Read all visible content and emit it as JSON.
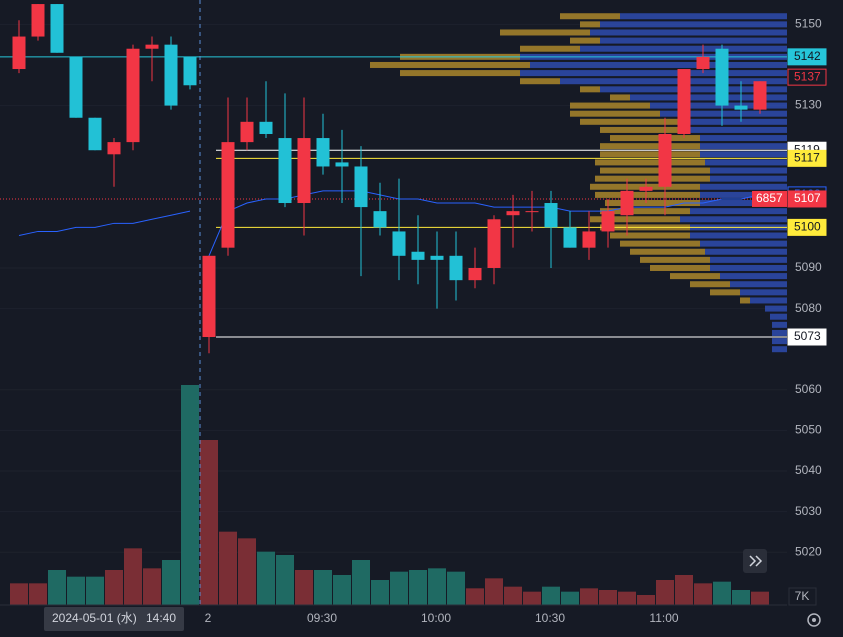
{
  "chart_data": {
    "type": "candlestick",
    "colors": {
      "up": "#f23645",
      "down": "#22c1d6",
      "up_volume": "#7a2e35",
      "down_volume": "#1f6a63",
      "vwap": "#2962ff"
    },
    "categories": [
      null,
      null,
      null,
      null,
      null,
      null,
      null,
      null,
      null,
      null,
      "2",
      null,
      null,
      null,
      null,
      null,
      "09:30",
      null,
      null,
      null,
      null,
      null,
      "10:00",
      null,
      null,
      null,
      null,
      null,
      "10:30",
      null,
      null,
      null,
      null,
      null,
      "11:00",
      null,
      null,
      null,
      null,
      null
    ],
    "open": [
      5139,
      5147,
      5155,
      5142,
      5127,
      5118,
      5121,
      5144,
      5145,
      5142,
      5073,
      5095,
      5121,
      5126,
      5122,
      5106,
      5122,
      5116,
      5115,
      5104,
      5099,
      5094,
      5093,
      5093,
      5087,
      5090,
      5103,
      5104,
      5106,
      5100,
      5095,
      5099,
      5103,
      5109,
      5110,
      5123,
      5139,
      5144,
      5130,
      5129
    ],
    "high": [
      5151,
      5155,
      5155,
      5142,
      5127,
      5122,
      5145,
      5147,
      5147,
      5142,
      5093,
      5132,
      5132,
      5136,
      5133,
      5132,
      5128,
      5124,
      5120,
      5111,
      5112,
      5103,
      5099,
      5099,
      5095,
      5103,
      5108,
      5109,
      5109,
      5104,
      5104,
      5107,
      5112,
      5112,
      5127,
      5139,
      5145,
      5145,
      5136,
      5136
    ],
    "low": [
      5138,
      5146,
      5143,
      5127,
      5119,
      5110,
      5119,
      5136,
      5129,
      5134,
      5069,
      5093,
      5119,
      5122,
      5105,
      5098,
      5113,
      5106,
      5088,
      5098,
      5087,
      5086,
      5080,
      5082,
      5085,
      5086,
      5095,
      5099,
      5090,
      5095,
      5092,
      5095,
      5098,
      5106,
      5103,
      5122,
      5138,
      5125,
      5126,
      5128
    ],
    "close": [
      5147,
      5155,
      5143,
      5127,
      5119,
      5121,
      5144,
      5145,
      5130,
      5135,
      5093,
      5121,
      5126,
      5123,
      5106,
      5122,
      5115,
      5115,
      5105,
      5100,
      5093,
      5092,
      5092,
      5087,
      5090,
      5102,
      5104,
      5104,
      5100,
      5095,
      5099,
      5104,
      5109,
      5110,
      5123,
      5139,
      5142,
      5130,
      5129,
      5136
    ],
    "volume": [
      13,
      13,
      21,
      17,
      17,
      21,
      34,
      22,
      27,
      132,
      99,
      44,
      40,
      32,
      30,
      21,
      21,
      18,
      27,
      15,
      20,
      21,
      22,
      20,
      10,
      16,
      11,
      8,
      11,
      8,
      10,
      9,
      8,
      6,
      15,
      18,
      13,
      14,
      9,
      8
    ],
    "vwap": [
      5098,
      5099,
      5099,
      5100,
      5100,
      5101,
      5101,
      5102,
      5103,
      5104,
      5093,
      5104,
      5106,
      5107,
      5107,
      5108,
      5109,
      5109,
      5109,
      5108,
      5107,
      5107,
      5106,
      5106,
      5106,
      5105,
      5105,
      5105,
      5105,
      5104,
      5104,
      5104,
      5105,
      5105,
      5105,
      5106,
      5106,
      5107,
      5107,
      5108
    ],
    "ylim": [
      5007,
      5156
    ],
    "volume_ylim": [
      0,
      363
    ],
    "yticks": [
      5020,
      5030,
      5040,
      5050,
      5060,
      5080,
      5090,
      5130,
      5150
    ],
    "grid": true,
    "levels": [
      {
        "value": 5142,
        "bg": "#26c6da",
        "fg": "#131722",
        "border": "#26c6da",
        "line": "full"
      },
      {
        "value": 5137,
        "bg": "#161a25",
        "fg": "#f23645",
        "border": "#f23645",
        "line": "none"
      },
      {
        "value": 5119,
        "bg": "#ffffff",
        "fg": "#131722",
        "border": "#ffffff",
        "line": "session"
      },
      {
        "value": 5117,
        "bg": "#ffeb3b",
        "fg": "#131722",
        "border": "#ffeb3b",
        "line": "session"
      },
      {
        "value": 5108,
        "bg": "#161a25",
        "fg": "#2962ff",
        "border": "#2962ff",
        "line": "none"
      },
      {
        "value": 5107,
        "bg": "#f23645",
        "fg": "#ffffff",
        "border": "#f23645",
        "line": "dotted",
        "tag": "6857"
      },
      {
        "value": 5100,
        "bg": "#ffeb3b",
        "fg": "#131722",
        "border": "#ffeb3b",
        "line": "session"
      },
      {
        "value": 5073,
        "bg": "#ffffff",
        "fg": "#131722",
        "border": "#ffffff",
        "line": "session"
      }
    ],
    "volume_profile": {
      "prices": [
        5152,
        5150,
        5148,
        5146,
        5144,
        5142,
        5140,
        5138,
        5136,
        5134,
        5132,
        5130,
        5128,
        5126,
        5124,
        5122,
        5120,
        5118,
        5116,
        5114,
        5112,
        5110,
        5108,
        5106,
        5104,
        5102,
        5100,
        5098,
        5096,
        5094,
        5092,
        5090,
        5088,
        5086,
        5084,
        5082,
        5080,
        5078,
        5076,
        5074,
        5072,
        5070
      ],
      "segments": [
        {
          "color": "#2f4fb8",
          "values": [
            167,
            187,
            197,
            187,
            207,
            267,
            257,
            267,
            227,
            187,
            157,
            137,
            127,
            107,
            97,
            87,
            87,
            87,
            82,
            77,
            77,
            87,
            87,
            87,
            97,
            107,
            97,
            97,
            87,
            82,
            77,
            77,
            67,
            57,
            47,
            37,
            22,
            17,
            15,
            15,
            15,
            15
          ]
        },
        {
          "color": "#b48d2c",
          "values": [
            60,
            20,
            90,
            30,
            60,
            120,
            160,
            120,
            40,
            20,
            20,
            80,
            90,
            100,
            90,
            90,
            100,
            100,
            110,
            110,
            115,
            110,
            105,
            95,
            90,
            90,
            90,
            80,
            80,
            75,
            70,
            60,
            50,
            40,
            30,
            10,
            0,
            0,
            0,
            0,
            0,
            0
          ]
        }
      ]
    },
    "crosshair_date": "2024-05-01 (水)",
    "crosshair_time": "14:40",
    "volume_axis_label": "7K"
  }
}
